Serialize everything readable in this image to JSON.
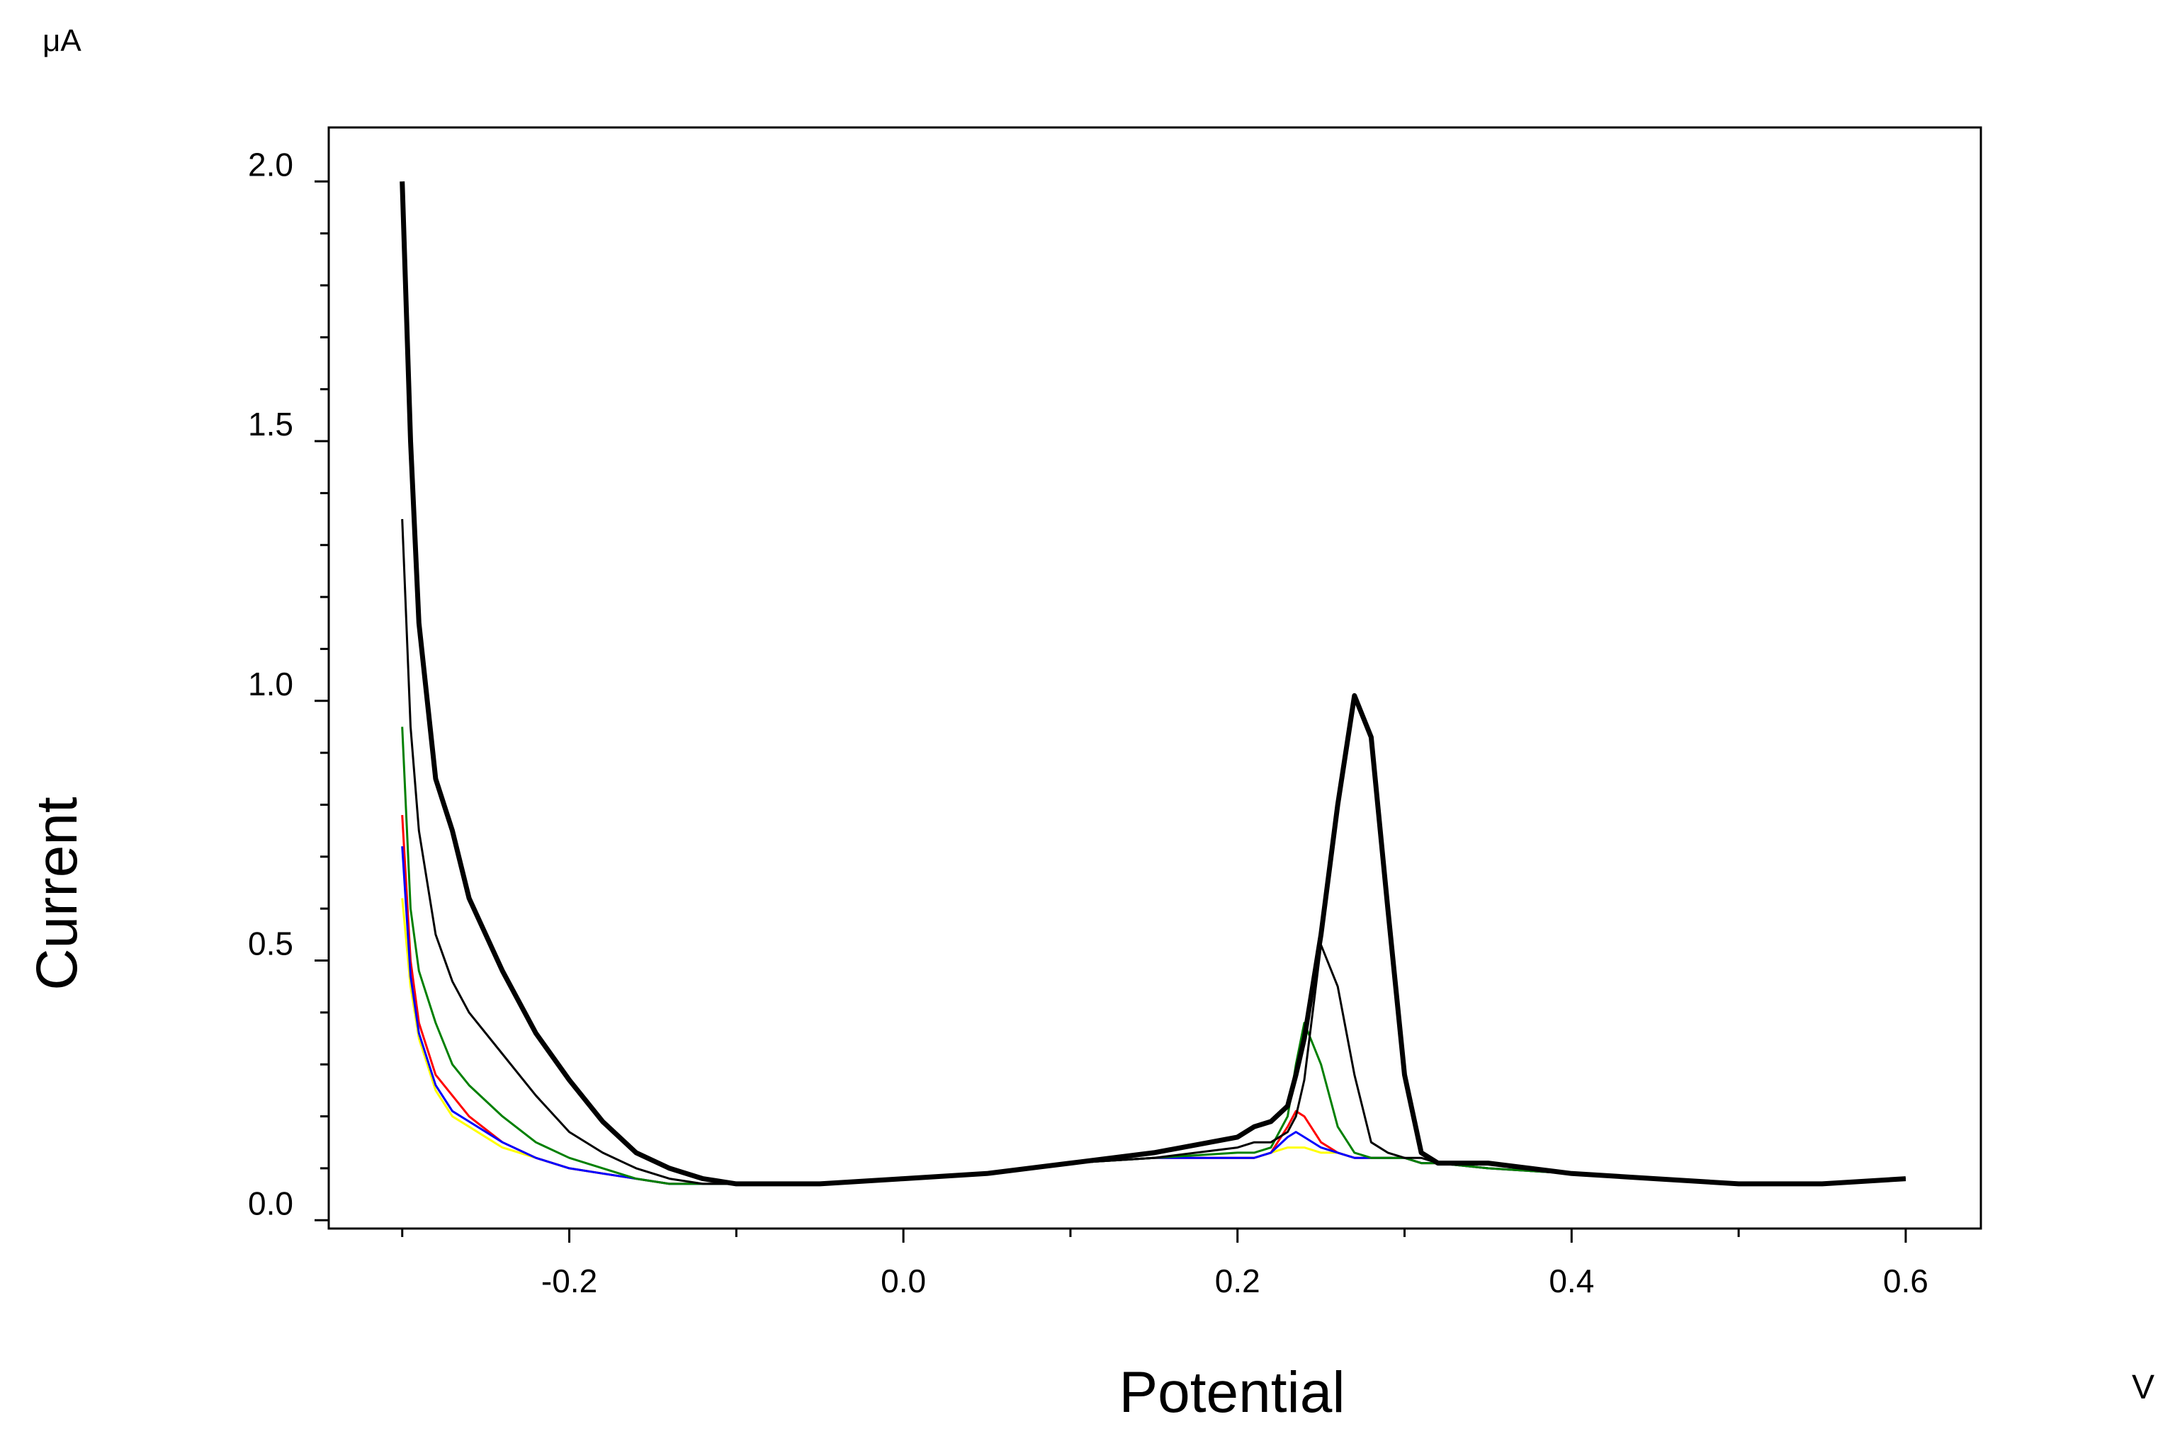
{
  "chart_data": {
    "type": "line",
    "unit_y": "μA",
    "ylabel": "Current",
    "xlabel": "Potential",
    "unit_x": "V",
    "x": [
      -0.3,
      -0.295,
      -0.29,
      -0.28,
      -0.27,
      -0.26,
      -0.24,
      -0.22,
      -0.2,
      -0.18,
      -0.16,
      -0.14,
      -0.12,
      -0.1,
      -0.05,
      0,
      0.05,
      0.1,
      0.15,
      0.2,
      0.21,
      0.22,
      0.23,
      0.235,
      0.24,
      0.25,
      0.26,
      0.27,
      0.28,
      0.29,
      0.3,
      0.31,
      0.32,
      0.35,
      0.4,
      0.45,
      0.5,
      0.55,
      0.6
    ],
    "series": [
      {
        "color": "#ffff00",
        "width": 3,
        "values": [
          0.62,
          0.45,
          0.35,
          0.25,
          0.2,
          0.18,
          0.14,
          0.12,
          0.1,
          0.09,
          0.08,
          0.07,
          0.07,
          0.07,
          0.07,
          0.08,
          0.09,
          0.11,
          0.12,
          0.12,
          0.12,
          0.13,
          0.14,
          0.14,
          0.14,
          0.13,
          0.13,
          0.12,
          0.12,
          0.12,
          0.12,
          0.11,
          0.11,
          0.1,
          0.09,
          0.08,
          0.07,
          0.07,
          0.08
        ]
      },
      {
        "color": "#ff0000",
        "width": 3,
        "values": [
          0.78,
          0.5,
          0.38,
          0.28,
          0.24,
          0.2,
          0.15,
          0.12,
          0.1,
          0.09,
          0.08,
          0.07,
          0.07,
          0.07,
          0.07,
          0.08,
          0.09,
          0.11,
          0.12,
          0.12,
          0.12,
          0.13,
          0.18,
          0.21,
          0.2,
          0.15,
          0.13,
          0.12,
          0.12,
          0.12,
          0.12,
          0.11,
          0.11,
          0.1,
          0.09,
          0.08,
          0.07,
          0.07,
          0.08
        ]
      },
      {
        "color": "#0000ff",
        "width": 3,
        "values": [
          0.72,
          0.47,
          0.36,
          0.26,
          0.21,
          0.19,
          0.15,
          0.12,
          0.1,
          0.09,
          0.08,
          0.07,
          0.07,
          0.07,
          0.07,
          0.08,
          0.09,
          0.11,
          0.12,
          0.12,
          0.12,
          0.13,
          0.16,
          0.17,
          0.16,
          0.14,
          0.13,
          0.12,
          0.12,
          0.12,
          0.12,
          0.11,
          0.11,
          0.1,
          0.09,
          0.08,
          0.07,
          0.07,
          0.08
        ]
      },
      {
        "color": "#008000",
        "width": 3,
        "values": [
          0.95,
          0.6,
          0.48,
          0.38,
          0.3,
          0.26,
          0.2,
          0.15,
          0.12,
          0.1,
          0.08,
          0.07,
          0.07,
          0.07,
          0.07,
          0.08,
          0.09,
          0.11,
          0.12,
          0.13,
          0.13,
          0.14,
          0.2,
          0.3,
          0.38,
          0.3,
          0.18,
          0.13,
          0.12,
          0.12,
          0.12,
          0.11,
          0.11,
          0.1,
          0.09,
          0.08,
          0.07,
          0.07,
          0.08
        ]
      },
      {
        "color": "#000000",
        "width": 3,
        "values": [
          1.35,
          0.95,
          0.75,
          0.55,
          0.46,
          0.4,
          0.32,
          0.24,
          0.17,
          0.13,
          0.1,
          0.08,
          0.07,
          0.07,
          0.07,
          0.08,
          0.09,
          0.11,
          0.12,
          0.14,
          0.15,
          0.15,
          0.17,
          0.2,
          0.27,
          0.53,
          0.45,
          0.28,
          0.15,
          0.13,
          0.12,
          0.12,
          0.11,
          0.11,
          0.09,
          0.08,
          0.07,
          0.07,
          0.08
        ]
      },
      {
        "color": "#000000",
        "width": 7,
        "values": [
          2.0,
          1.5,
          1.15,
          0.85,
          0.75,
          0.62,
          0.48,
          0.36,
          0.27,
          0.19,
          0.13,
          0.1,
          0.08,
          0.07,
          0.07,
          0.08,
          0.09,
          0.11,
          0.13,
          0.16,
          0.18,
          0.19,
          0.22,
          0.28,
          0.35,
          0.55,
          0.8,
          1.01,
          0.93,
          0.6,
          0.28,
          0.13,
          0.11,
          0.11,
          0.09,
          0.08,
          0.07,
          0.07,
          0.08
        ]
      }
    ],
    "xlim": [
      -0.344,
      0.645
    ],
    "ylim": [
      -0.016,
      2.104
    ],
    "xticks": [
      -0.2,
      {
        "value": 0,
        "label": "0.0"
      },
      0.2,
      0.4,
      0.6
    ],
    "yticks": [
      {
        "value": 0,
        "label": "0.0"
      },
      0.5,
      {
        "value": 1,
        "label": "1.0"
      },
      1.5,
      {
        "value": 2,
        "label": "2.0"
      }
    ],
    "xminor_ticks": [
      -0.3,
      -0.1,
      0.1,
      0.3,
      0.5
    ],
    "yminor_ticks": [
      0.1,
      0.2,
      0.3,
      0.4,
      0.6,
      0.7,
      0.8,
      0.9,
      1.1,
      1.2,
      1.3,
      1.4,
      1.6,
      1.7,
      1.8,
      1.9
    ],
    "grid": false
  }
}
